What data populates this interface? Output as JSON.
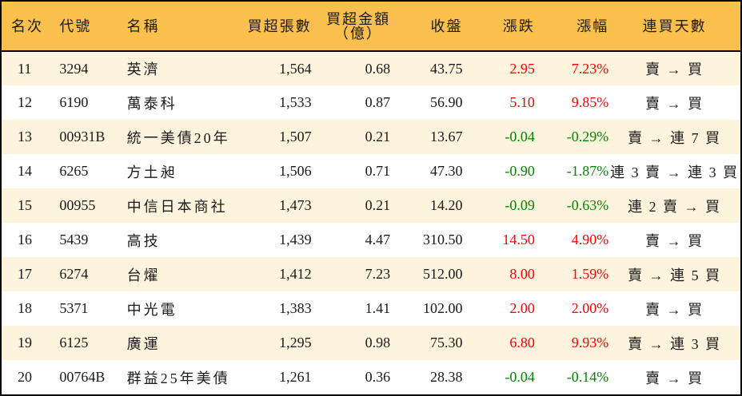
{
  "table": {
    "headers": {
      "rank": "名次",
      "code": "代號",
      "name": "名稱",
      "net_buy_lots": "買超張數",
      "net_buy_amount_line1": "買超金額",
      "net_buy_amount_line2": "（億）",
      "close": "收盤",
      "change": "漲跌",
      "change_pct": "漲幅",
      "consecutive_buy_days": "連買天數"
    },
    "rows": [
      {
        "rank": "11",
        "code": "3294",
        "name": "英濟",
        "net_buy_lots": "1,564",
        "net_buy_amount": "0.68",
        "close": "43.75",
        "change": "2.95",
        "change_pct": "7.23%",
        "direction": "up",
        "streak": "賣 → 買"
      },
      {
        "rank": "12",
        "code": "6190",
        "name": "萬泰科",
        "net_buy_lots": "1,533",
        "net_buy_amount": "0.87",
        "close": "56.90",
        "change": "5.10",
        "change_pct": "9.85%",
        "direction": "up",
        "streak": "賣 → 買"
      },
      {
        "rank": "13",
        "code": "00931B",
        "name": "統一美債20年",
        "net_buy_lots": "1,507",
        "net_buy_amount": "0.21",
        "close": "13.67",
        "change": "-0.04",
        "change_pct": "-0.29%",
        "direction": "down",
        "streak": "賣 → 連 7 買"
      },
      {
        "rank": "14",
        "code": "6265",
        "name": "方土昶",
        "net_buy_lots": "1,506",
        "net_buy_amount": "0.71",
        "close": "47.30",
        "change": "-0.90",
        "change_pct": "-1.87%",
        "direction": "down",
        "streak": "連 3 賣 → 連 3 買"
      },
      {
        "rank": "15",
        "code": "00955",
        "name": "中信日本商社",
        "net_buy_lots": "1,473",
        "net_buy_amount": "0.21",
        "close": "14.20",
        "change": "-0.09",
        "change_pct": "-0.63%",
        "direction": "down",
        "streak": "連 2 賣 → 買"
      },
      {
        "rank": "16",
        "code": "5439",
        "name": "高技",
        "net_buy_lots": "1,439",
        "net_buy_amount": "4.47",
        "close": "310.50",
        "change": "14.50",
        "change_pct": "4.90%",
        "direction": "up",
        "streak": "賣 → 買"
      },
      {
        "rank": "17",
        "code": "6274",
        "name": "台燿",
        "net_buy_lots": "1,412",
        "net_buy_amount": "7.23",
        "close": "512.00",
        "change": "8.00",
        "change_pct": "1.59%",
        "direction": "up",
        "streak": "賣 → 連 5 買"
      },
      {
        "rank": "18",
        "code": "5371",
        "name": "中光電",
        "net_buy_lots": "1,383",
        "net_buy_amount": "1.41",
        "close": "102.00",
        "change": "2.00",
        "change_pct": "2.00%",
        "direction": "up",
        "streak": "賣 → 買"
      },
      {
        "rank": "19",
        "code": "6125",
        "name": "廣運",
        "net_buy_lots": "1,295",
        "net_buy_amount": "0.98",
        "close": "75.30",
        "change": "6.80",
        "change_pct": "9.93%",
        "direction": "up",
        "streak": "賣 → 連 3 買"
      },
      {
        "rank": "20",
        "code": "00764B",
        "name": "群益25年美債",
        "net_buy_lots": "1,261",
        "net_buy_amount": "0.36",
        "close": "28.38",
        "change": "-0.04",
        "change_pct": "-0.14%",
        "direction": "down",
        "streak": "賣 → 買"
      }
    ]
  },
  "colors": {
    "header_bg": "#f9c04d",
    "row_alt_bg": "#fef3dc",
    "up": "#ff0000",
    "down": "#008800",
    "border": "#000000"
  }
}
